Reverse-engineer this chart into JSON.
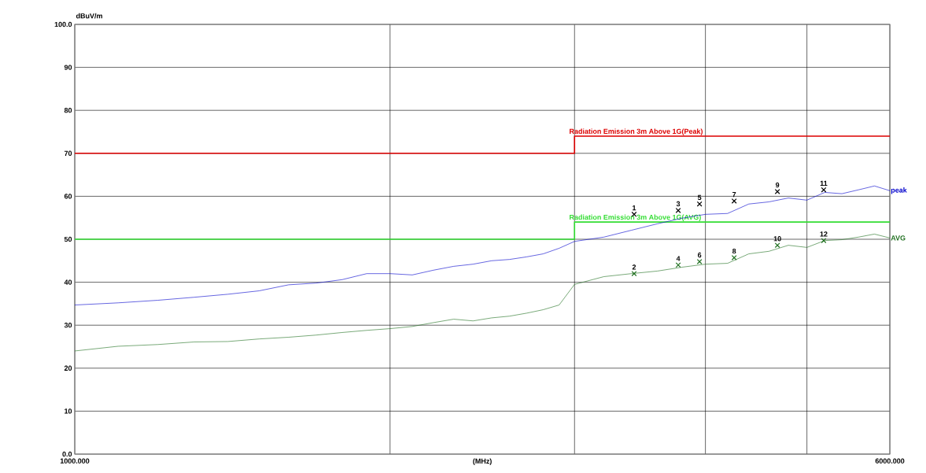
{
  "chart_data": {
    "type": "line",
    "xlabel": "(MHz)",
    "ylabel": "dBuV/m",
    "log": "x",
    "grid": true,
    "xlim": [
      1000,
      6000
    ],
    "ylim": [
      0,
      100
    ],
    "xticks": [
      {
        "value": 1000,
        "label": "1000.000"
      },
      {
        "value": 2000,
        "label": null
      },
      {
        "value": 3000,
        "label": null
      },
      {
        "value": 4000,
        "label": null
      },
      {
        "value": 5000,
        "label": null
      },
      {
        "value": 6000,
        "label": "6000.000"
      }
    ],
    "yticks": [
      {
        "value": 0,
        "label": "0.0"
      },
      10,
      20,
      30,
      40,
      50,
      60,
      70,
      80,
      90,
      {
        "value": 100,
        "label": "100.0"
      }
    ],
    "series": [
      {
        "name": "Radiation Emission 3m Above 1G(Peak)",
        "color": "#dd0000",
        "x": [
          1000,
          3000,
          3000,
          6000
        ],
        "values": [
          70,
          70,
          74,
          74
        ]
      },
      {
        "name": "Radiation Emission 3m Above 1G(AVG)",
        "color": "#33dd33",
        "x": [
          1000,
          3000,
          3000,
          6000
        ],
        "values": [
          50,
          50,
          54,
          54
        ]
      },
      {
        "name": "peak",
        "color": "#0000cc",
        "x": [
          1000,
          1100,
          1200,
          1300,
          1400,
          1500,
          1600,
          1700,
          1800,
          1900,
          2000,
          2100,
          2200,
          2300,
          2400,
          2500,
          2600,
          2700,
          2800,
          2900,
          3000,
          3200,
          3400,
          3600,
          3800,
          4000,
          4200,
          4400,
          4600,
          4800,
          5000,
          5200,
          5400,
          5600,
          5800,
          6000
        ],
        "values": [
          34.7,
          35.2,
          35.8,
          36.5,
          37.2,
          38.0,
          39.4,
          39.8,
          40.6,
          42.0,
          42.0,
          41.7,
          42.8,
          43.7,
          44.2,
          45.0,
          45.3,
          45.9,
          46.6,
          47.9,
          49.5,
          50.5,
          52.1,
          53.6,
          54.9,
          55.8,
          56.0,
          58.2,
          58.7,
          59.6,
          59.1,
          60.9,
          60.6,
          61.5,
          62.4,
          61.3
        ]
      },
      {
        "name": "AVG",
        "color": "#207020",
        "x": [
          1000,
          1100,
          1200,
          1300,
          1400,
          1500,
          1600,
          1700,
          1800,
          1900,
          2000,
          2100,
          2200,
          2300,
          2400,
          2500,
          2600,
          2700,
          2800,
          2900,
          3000,
          3200,
          3400,
          3600,
          3800,
          4000,
          4200,
          4400,
          4600,
          4800,
          5000,
          5200,
          5400,
          5600,
          5800,
          6000
        ],
        "values": [
          24.0,
          25.1,
          25.5,
          26.1,
          26.2,
          26.8,
          27.2,
          27.7,
          28.3,
          28.8,
          29.2,
          29.7,
          30.6,
          31.4,
          31.0,
          31.7,
          32.1,
          32.8,
          33.6,
          34.7,
          39.5,
          41.3,
          42.0,
          42.6,
          43.5,
          44.2,
          44.4,
          46.6,
          47.2,
          48.6,
          48.1,
          49.7,
          49.9,
          50.5,
          51.2,
          50.3
        ]
      },
      {
        "type": "scatter",
        "marker": "cross",
        "color": "#000000",
        "x": [
          3420,
          3768,
          3949,
          4261,
          4686,
          5188
        ],
        "values": [
          55.8,
          56.7,
          58.2,
          58.9,
          61.1,
          61.5
        ]
      },
      {
        "type": "scatter",
        "marker": "cross",
        "color": "#207020",
        "x": [
          3420,
          3768,
          3949,
          4261,
          4686,
          5188
        ],
        "values": [
          42.0,
          44.0,
          44.8,
          45.7,
          48.6,
          49.7
        ]
      }
    ],
    "annotations": [
      {
        "text": "1",
        "x": 3420,
        "y": 55.8
      },
      {
        "text": "2",
        "x": 3420,
        "y": 42.0
      },
      {
        "text": "3",
        "x": 3768,
        "y": 56.7
      },
      {
        "text": "4",
        "x": 3768,
        "y": 44.0
      },
      {
        "text": "5",
        "x": 3949,
        "y": 58.2
      },
      {
        "text": "6",
        "x": 3949,
        "y": 44.8
      },
      {
        "text": "7",
        "x": 4261,
        "y": 58.9
      },
      {
        "text": "8",
        "x": 4261,
        "y": 45.7
      },
      {
        "text": "9",
        "x": 4686,
        "y": 61.1
      },
      {
        "text": "10",
        "x": 4686,
        "y": 48.6
      },
      {
        "text": "11",
        "x": 5188,
        "y": 61.5
      },
      {
        "text": "12",
        "x": 5188,
        "y": 49.7
      }
    ]
  }
}
